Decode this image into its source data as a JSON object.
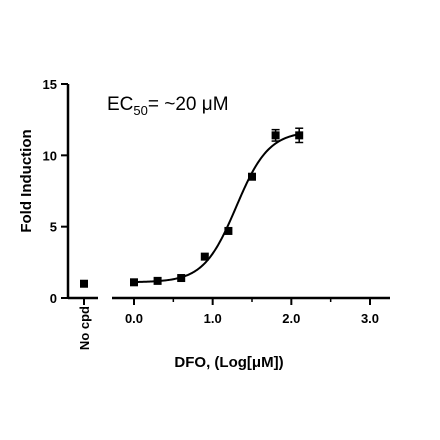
{
  "chart_data": {
    "type": "scatter",
    "title": "",
    "xlabel": "DFO, (Log[μM])",
    "ylabel": "Fold Induction",
    "xlim": [
      -0.2,
      3.2
    ],
    "ylim": [
      0,
      15
    ],
    "x_ticks": [
      {
        "value": 0,
        "label": "0.0"
      },
      {
        "value": 1,
        "label": "1.0"
      },
      {
        "value": 2,
        "label": "2.0"
      },
      {
        "value": 3,
        "label": "3.0"
      }
    ],
    "y_ticks": [
      {
        "value": 0,
        "label": "0"
      },
      {
        "value": 5,
        "label": "5"
      },
      {
        "value": 10,
        "label": "10"
      },
      {
        "value": 15,
        "label": "15"
      }
    ],
    "control": {
      "label": "No cpd",
      "value": 1.0
    },
    "annotation": {
      "prefix": "EC",
      "subscript": "50",
      "suffix": "= ~20 μM"
    },
    "points": [
      {
        "x": 0.0,
        "y": 1.1
      },
      {
        "x": 0.3,
        "y": 1.2
      },
      {
        "x": 0.6,
        "y": 1.4
      },
      {
        "x": 0.9,
        "y": 2.9
      },
      {
        "x": 1.2,
        "y": 4.7
      },
      {
        "x": 1.5,
        "y": 8.5
      },
      {
        "x": 1.8,
        "y": 11.4,
        "err": 0.4
      },
      {
        "x": 2.1,
        "y": 11.4,
        "err": 0.5
      }
    ],
    "fit": {
      "bottom": 1.1,
      "top": 11.7,
      "logEC50": 1.3,
      "hill": 2.1
    },
    "grid": false,
    "legend": "none"
  }
}
